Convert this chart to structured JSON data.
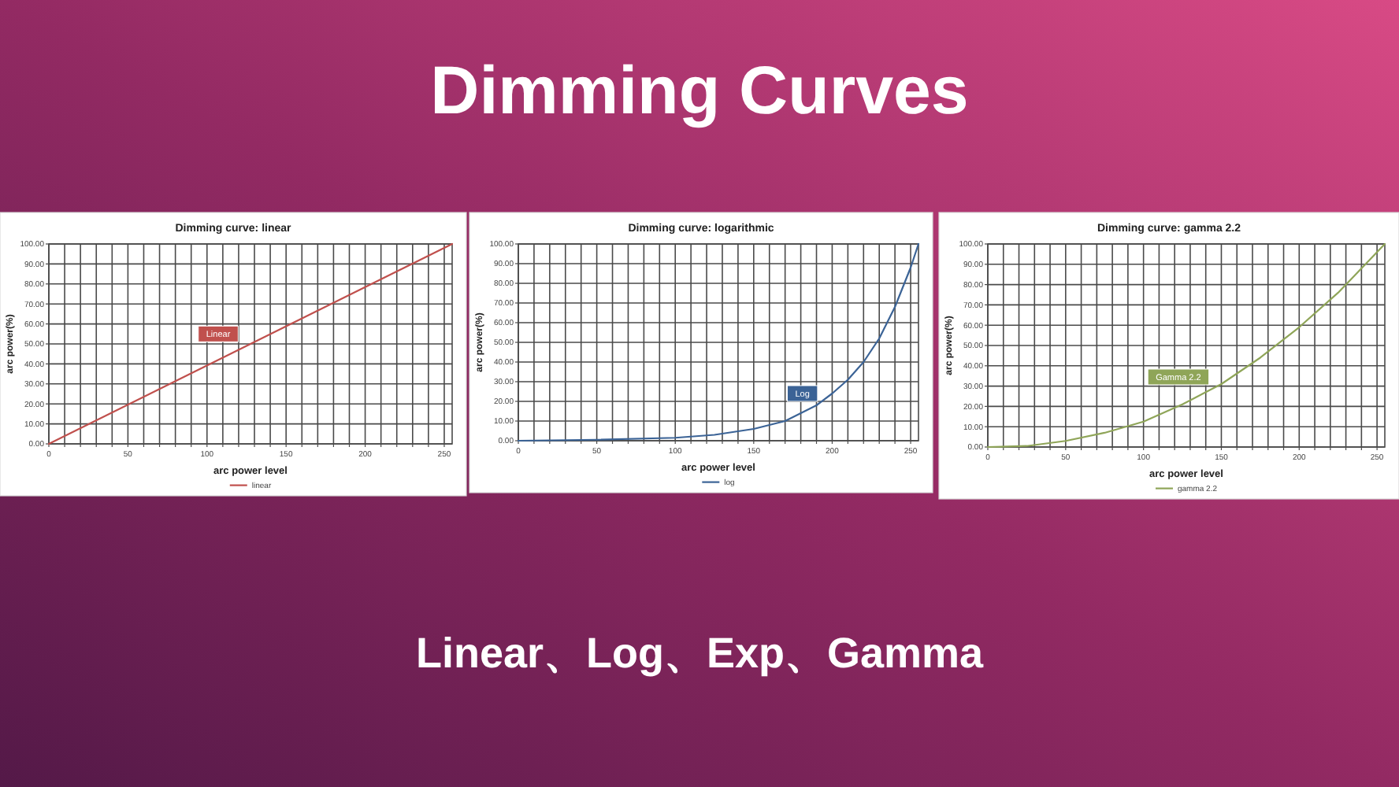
{
  "chart_data": [
    {
      "type": "other",
      "title": "Dimming Curves",
      "annotations": [
        "Linear、Log、Exp、Gamma"
      ]
    },
    {
      "type": "line",
      "title": "Dimming curve: linear",
      "xlabel": "arc power level",
      "ylabel": "arc power(%)",
      "xlim": [
        0,
        255
      ],
      "ylim": [
        0,
        100
      ],
      "xticks": [
        0,
        {
          "value": 10,
          "label": null
        },
        {
          "value": 20,
          "label": null
        },
        {
          "value": 30,
          "label": null
        },
        {
          "value": 40,
          "label": null
        },
        50,
        {
          "value": 60,
          "label": null
        },
        {
          "value": 70,
          "label": null
        },
        {
          "value": 80,
          "label": null
        },
        {
          "value": 90,
          "label": null
        },
        100,
        {
          "value": 110,
          "label": null
        },
        {
          "value": 120,
          "label": null
        },
        {
          "value": 130,
          "label": null
        },
        {
          "value": 140,
          "label": null
        },
        150,
        {
          "value": 160,
          "label": null
        },
        {
          "value": 170,
          "label": null
        },
        {
          "value": 180,
          "label": null
        },
        {
          "value": 190,
          "label": null
        },
        200,
        {
          "value": 210,
          "label": null
        },
        {
          "value": 220,
          "label": null
        },
        {
          "value": 230,
          "label": null
        },
        {
          "value": 240,
          "label": null
        },
        250
      ],
      "yticks": [
        {
          "value": 0,
          "label": "0.00"
        },
        {
          "value": 10,
          "label": "10.00"
        },
        {
          "value": 20,
          "label": "20.00"
        },
        {
          "value": 30,
          "label": "30.00"
        },
        {
          "value": 40,
          "label": "40.00"
        },
        {
          "value": 50,
          "label": "50.00"
        },
        {
          "value": 60,
          "label": "60.00"
        },
        {
          "value": 70,
          "label": "70.00"
        },
        {
          "value": 80,
          "label": "80.00"
        },
        {
          "value": 90,
          "label": "90.00"
        },
        {
          "value": 100,
          "label": "100.00"
        }
      ],
      "grid": true,
      "legend": "bottom",
      "series": [
        {
          "name": "linear",
          "color": "#c0504d",
          "x": [
            0,
            255
          ],
          "values": [
            0,
            100
          ]
        }
      ],
      "annotations": [
        "Linear"
      ]
    },
    {
      "type": "line",
      "title": "Dimming curve: logarithmic",
      "xlabel": "arc power level",
      "ylabel": "arc power(%)",
      "xlim": [
        0,
        255
      ],
      "ylim": [
        0,
        100
      ],
      "xticks": [
        0,
        {
          "value": 10,
          "label": null
        },
        {
          "value": 20,
          "label": null
        },
        {
          "value": 30,
          "label": null
        },
        {
          "value": 40,
          "label": null
        },
        50,
        {
          "value": 60,
          "label": null
        },
        {
          "value": 70,
          "label": null
        },
        {
          "value": 80,
          "label": null
        },
        {
          "value": 90,
          "label": null
        },
        100,
        {
          "value": 110,
          "label": null
        },
        {
          "value": 120,
          "label": null
        },
        {
          "value": 130,
          "label": null
        },
        {
          "value": 140,
          "label": null
        },
        150,
        {
          "value": 160,
          "label": null
        },
        {
          "value": 170,
          "label": null
        },
        {
          "value": 180,
          "label": null
        },
        {
          "value": 190,
          "label": null
        },
        200,
        {
          "value": 210,
          "label": null
        },
        {
          "value": 220,
          "label": null
        },
        {
          "value": 230,
          "label": null
        },
        {
          "value": 240,
          "label": null
        },
        250
      ],
      "yticks": [
        {
          "value": 0,
          "label": "0.00"
        },
        {
          "value": 10,
          "label": "10.00"
        },
        {
          "value": 20,
          "label": "20.00"
        },
        {
          "value": 30,
          "label": "30.00"
        },
        {
          "value": 40,
          "label": "40.00"
        },
        {
          "value": 50,
          "label": "50.00"
        },
        {
          "value": 60,
          "label": "60.00"
        },
        {
          "value": 70,
          "label": "70.00"
        },
        {
          "value": 80,
          "label": "80.00"
        },
        {
          "value": 90,
          "label": "90.00"
        },
        {
          "value": 100,
          "label": "100.00"
        }
      ],
      "grid": true,
      "legend": "bottom",
      "series": [
        {
          "name": "log",
          "color": "#3b6396",
          "x": [
            0,
            50,
            100,
            125,
            150,
            170,
            180,
            190,
            200,
            210,
            220,
            230,
            240,
            250,
            255
          ],
          "values": [
            0,
            0.5,
            1.5,
            3,
            6,
            10,
            14,
            18,
            24,
            31,
            40,
            52,
            68,
            88,
            100
          ]
        }
      ],
      "annotations": [
        "Log"
      ]
    },
    {
      "type": "line",
      "title": "Dimming curve: gamma 2.2",
      "xlabel": "arc power level",
      "ylabel": "arc power(%)",
      "xlim": [
        0,
        255
      ],
      "ylim": [
        0,
        100
      ],
      "xticks": [
        0,
        {
          "value": 10,
          "label": null
        },
        {
          "value": 20,
          "label": null
        },
        {
          "value": 30,
          "label": null
        },
        {
          "value": 40,
          "label": null
        },
        50,
        {
          "value": 60,
          "label": null
        },
        {
          "value": 70,
          "label": null
        },
        {
          "value": 80,
          "label": null
        },
        {
          "value": 90,
          "label": null
        },
        100,
        {
          "value": 110,
          "label": null
        },
        {
          "value": 120,
          "label": null
        },
        {
          "value": 130,
          "label": null
        },
        {
          "value": 140,
          "label": null
        },
        150,
        {
          "value": 160,
          "label": null
        },
        {
          "value": 170,
          "label": null
        },
        {
          "value": 180,
          "label": null
        },
        {
          "value": 190,
          "label": null
        },
        200,
        {
          "value": 210,
          "label": null
        },
        {
          "value": 220,
          "label": null
        },
        {
          "value": 230,
          "label": null
        },
        {
          "value": 240,
          "label": null
        },
        250
      ],
      "yticks": [
        {
          "value": 0,
          "label": "0.00"
        },
        {
          "value": 10,
          "label": "10.00"
        },
        {
          "value": 20,
          "label": "20.00"
        },
        {
          "value": 30,
          "label": "30.00"
        },
        {
          "value": 40,
          "label": "40.00"
        },
        {
          "value": 50,
          "label": "50.00"
        },
        {
          "value": 60,
          "label": "60.00"
        },
        {
          "value": 70,
          "label": "70.00"
        },
        {
          "value": 80,
          "label": "80.00"
        },
        {
          "value": 90,
          "label": "90.00"
        },
        {
          "value": 100,
          "label": "100.00"
        }
      ],
      "grid": true,
      "legend": "bottom",
      "series": [
        {
          "name": "gamma 2.2",
          "color": "#8fa558",
          "x": [
            0,
            25,
            50,
            75,
            100,
            125,
            150,
            175,
            200,
            225,
            255
          ],
          "values": [
            0,
            0.5,
            3,
            7,
            12.5,
            21,
            31,
            44,
            59,
            76,
            100
          ]
        }
      ],
      "annotations": [
        "Gamma 2.2"
      ]
    }
  ]
}
